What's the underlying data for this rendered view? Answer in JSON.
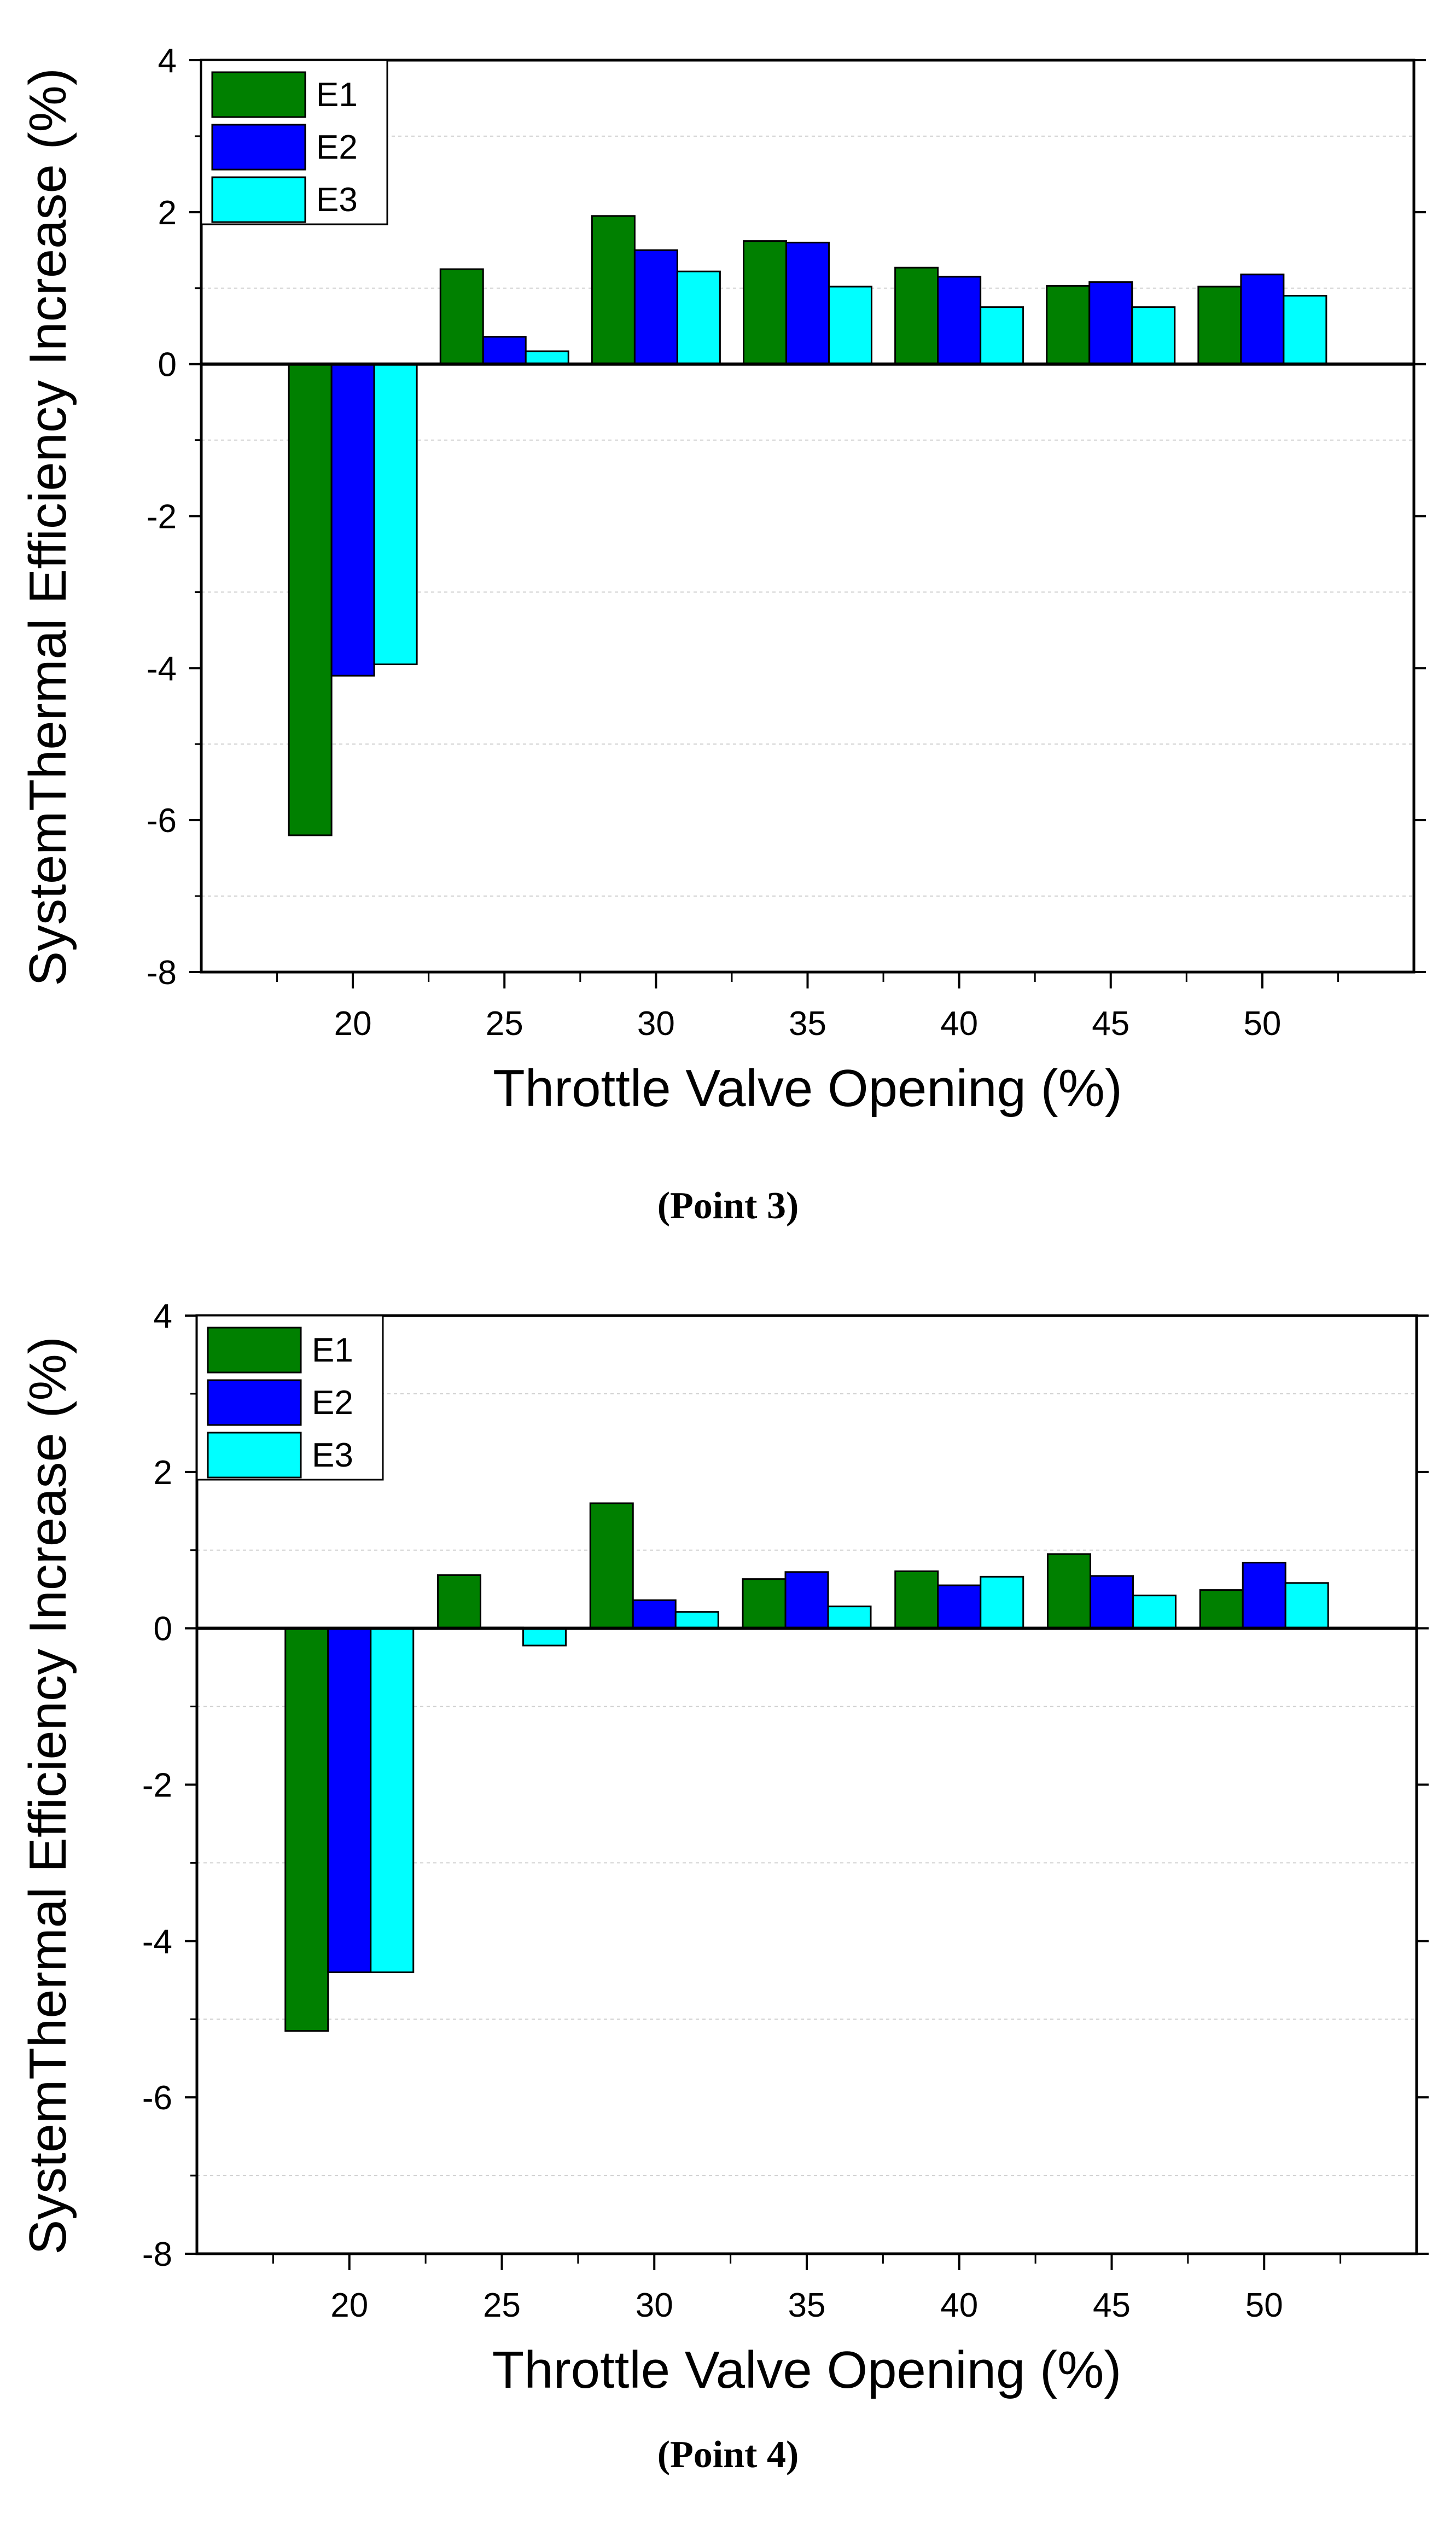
{
  "chart_data": [
    {
      "type": "bar",
      "caption": "(Point 3)",
      "xlabel": "Throttle Valve Opening (%)",
      "ylabel": "SystemThermal Efficiency Increase (%)",
      "ylim": [
        -8,
        4
      ],
      "yticks": [
        "-8",
        "-6",
        "-4",
        "-2",
        "0",
        "2",
        "4"
      ],
      "categories": [
        "20",
        "25",
        "30",
        "35",
        "40",
        "45",
        "50"
      ],
      "series": [
        {
          "name": "E1",
          "color": "#008000",
          "values": [
            -6.2,
            1.25,
            1.95,
            1.62,
            1.27,
            1.03,
            1.02
          ]
        },
        {
          "name": "E2",
          "color": "#0000FF",
          "values": [
            -4.1,
            0.36,
            1.5,
            1.6,
            1.15,
            1.08,
            1.18
          ]
        },
        {
          "name": "E3",
          "color": "#00FFFF",
          "values": [
            -3.95,
            0.17,
            1.22,
            1.02,
            0.75,
            0.75,
            0.9
          ]
        }
      ]
    },
    {
      "type": "bar",
      "caption": "(Point 4)",
      "xlabel": "Throttle Valve Opening (%)",
      "ylabel": "SystemThermal Efficiency Increase (%)",
      "ylim": [
        -8,
        4
      ],
      "yticks": [
        "-8",
        "-6",
        "-4",
        "-2",
        "0",
        "2",
        "4"
      ],
      "categories": [
        "20",
        "25",
        "30",
        "35",
        "40",
        "45",
        "50"
      ],
      "series": [
        {
          "name": "E1",
          "color": "#008000",
          "values": [
            -5.15,
            0.68,
            1.6,
            0.63,
            0.73,
            0.95,
            0.49
          ]
        },
        {
          "name": "E2",
          "color": "#0000FF",
          "values": [
            -4.4,
            0.01,
            0.36,
            0.72,
            0.55,
            0.67,
            0.84
          ]
        },
        {
          "name": "E3",
          "color": "#00FFFF",
          "values": [
            -4.4,
            -0.22,
            0.21,
            0.28,
            0.66,
            0.42,
            0.58
          ]
        }
      ]
    }
  ]
}
